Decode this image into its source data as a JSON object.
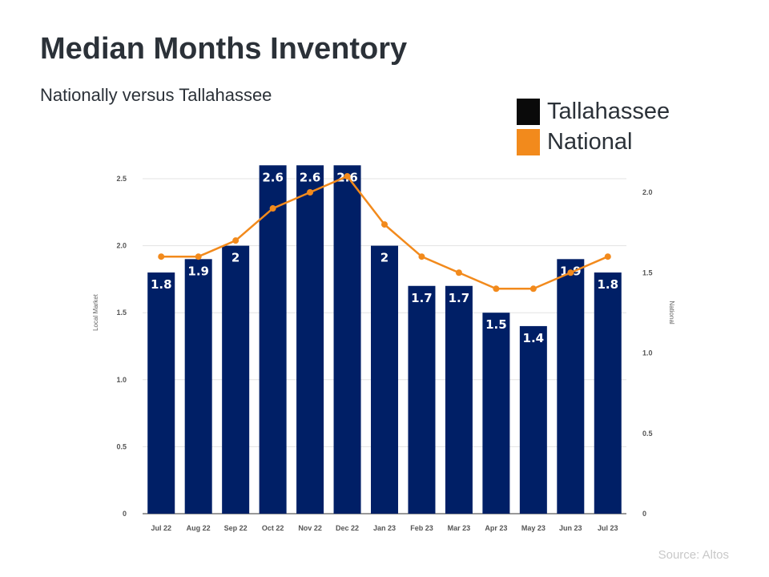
{
  "title": "Median Months Inventory",
  "subtitle": "Nationally versus Tallahassee",
  "source": "Source: Altos",
  "colors": {
    "bar": "#001f66",
    "line": "#f28a1c",
    "legend_dark": "#0a0a0a",
    "legend_orange": "#f28a1c"
  },
  "legend": [
    {
      "label": "Tallahassee",
      "color": "#0a0a0a"
    },
    {
      "label": "National",
      "color": "#f28a1c"
    }
  ],
  "chart_data": {
    "type": "bar",
    "title": "Median Months Inventory",
    "subtitle": "Nationally versus Tallahassee",
    "categories": [
      "Jul 22",
      "Aug 22",
      "Sep 22",
      "Oct 22",
      "Nov 22",
      "Dec 22",
      "Jan 23",
      "Feb 23",
      "Mar 23",
      "Apr 23",
      "May 23",
      "Jun 23",
      "Jul 23"
    ],
    "series": [
      {
        "name": "Tallahassee",
        "type": "bar",
        "axis": "left",
        "values": [
          1.8,
          1.9,
          2,
          2.6,
          2.6,
          2.6,
          2,
          1.7,
          1.7,
          1.5,
          1.4,
          1.9,
          1.8
        ],
        "labels": [
          "1.8",
          "1.9",
          "2",
          "2.6",
          "2.6",
          "2.6",
          "2",
          "1.7",
          "1.7",
          "1.5",
          "1.4",
          "1.9",
          "1.8"
        ]
      },
      {
        "name": "National",
        "type": "line",
        "axis": "right",
        "values": [
          1.6,
          1.6,
          1.7,
          1.9,
          2.0,
          2.1,
          1.8,
          1.6,
          1.5,
          1.4,
          1.4,
          1.5,
          1.6
        ]
      }
    ],
    "ylabel": "Local Market",
    "y2label": "National",
    "ylim": [
      0,
      2.5
    ],
    "y2lim": [
      0,
      2.1
    ],
    "yticks": [
      "0",
      "0.5",
      "1.0",
      "1.5",
      "2.0",
      "2.5"
    ],
    "y2ticks": [
      "0",
      "0.5",
      "1.0",
      "1.5",
      "2.0"
    ],
    "grid": true
  }
}
